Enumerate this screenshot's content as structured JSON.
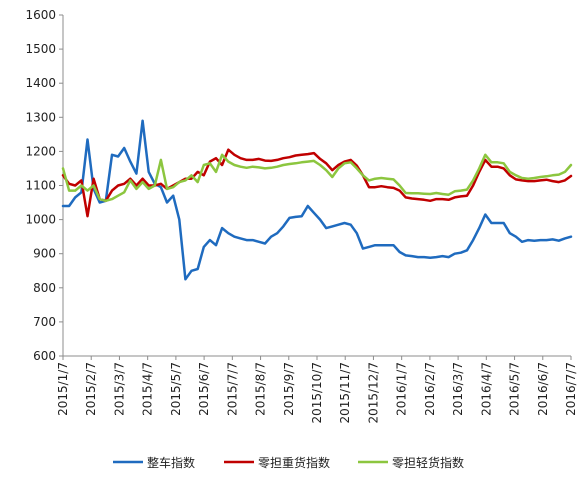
{
  "chart_data": {
    "type": "line",
    "title": "",
    "xlabel": "",
    "ylabel": "",
    "ylim": [
      600,
      1600
    ],
    "yticks": [
      600,
      700,
      800,
      900,
      1000,
      1100,
      1200,
      1300,
      1400,
      1500,
      1600
    ],
    "grid": false,
    "legend_position": "bottom",
    "x_tick_labels": [
      "2015/1/7",
      "2015/2/7",
      "2015/3/7",
      "2015/4/7",
      "2015/5/7",
      "2015/6/7",
      "2015/7/7",
      "2015/8/7",
      "2015/9/7",
      "2015/10/7",
      "2015/11/7",
      "2015/12/7",
      "2016/1/7",
      "2016/2/7",
      "2016/3/7",
      "2016/4/7",
      "2016/5/7",
      "2016/6/7",
      "2016/7/7"
    ],
    "series": [
      {
        "name": "整车指数",
        "color": "#1f6bbf",
        "values": [
          1040,
          1040,
          1065,
          1080,
          1235,
          1090,
          1050,
          1055,
          1190,
          1185,
          1210,
          1170,
          1135,
          1290,
          1140,
          1105,
          1095,
          1050,
          1070,
          1000,
          825,
          850,
          855,
          920,
          940,
          925,
          975,
          960,
          950,
          945,
          940,
          940,
          935,
          930,
          950,
          960,
          980,
          1005,
          1008,
          1010,
          1040,
          1020,
          1000,
          975,
          980,
          985,
          990,
          985,
          960,
          915,
          920,
          925,
          925,
          925,
          925,
          905,
          895,
          893,
          890,
          890,
          888,
          890,
          893,
          890,
          900,
          903,
          910,
          940,
          975,
          1015,
          990,
          990,
          990,
          960,
          950,
          935,
          940,
          938,
          940,
          940,
          942,
          938,
          945,
          950
        ]
      },
      {
        "name": "零担重货指数",
        "color": "#c00000",
        "values": [
          1130,
          1105,
          1100,
          1115,
          1010,
          1120,
          1060,
          1055,
          1085,
          1100,
          1105,
          1120,
          1100,
          1120,
          1100,
          1100,
          1105,
          1090,
          1100,
          1110,
          1120,
          1120,
          1140,
          1130,
          1170,
          1180,
          1160,
          1205,
          1190,
          1180,
          1175,
          1175,
          1178,
          1173,
          1172,
          1175,
          1180,
          1183,
          1188,
          1190,
          1192,
          1195,
          1178,
          1165,
          1145,
          1160,
          1170,
          1175,
          1158,
          1130,
          1095,
          1095,
          1098,
          1095,
          1093,
          1085,
          1065,
          1062,
          1060,
          1058,
          1055,
          1060,
          1060,
          1058,
          1065,
          1068,
          1070,
          1100,
          1140,
          1175,
          1155,
          1155,
          1150,
          1130,
          1118,
          1115,
          1113,
          1113,
          1115,
          1117,
          1113,
          1110,
          1115,
          1128
        ]
      },
      {
        "name": "零担轻货指数",
        "color": "#8cc63f",
        "values": [
          1150,
          1085,
          1085,
          1100,
          1085,
          1100,
          1060,
          1055,
          1060,
          1070,
          1080,
          1115,
          1090,
          1110,
          1090,
          1100,
          1175,
          1090,
          1095,
          1110,
          1115,
          1130,
          1110,
          1160,
          1165,
          1140,
          1190,
          1170,
          1160,
          1155,
          1152,
          1155,
          1153,
          1150,
          1152,
          1155,
          1160,
          1163,
          1165,
          1168,
          1170,
          1172,
          1160,
          1145,
          1125,
          1150,
          1165,
          1168,
          1150,
          1130,
          1115,
          1120,
          1122,
          1120,
          1118,
          1100,
          1078,
          1077,
          1077,
          1076,
          1075,
          1078,
          1075,
          1073,
          1083,
          1085,
          1088,
          1115,
          1150,
          1190,
          1168,
          1168,
          1165,
          1140,
          1130,
          1122,
          1120,
          1122,
          1125,
          1127,
          1130,
          1132,
          1140,
          1160
        ]
      }
    ]
  }
}
